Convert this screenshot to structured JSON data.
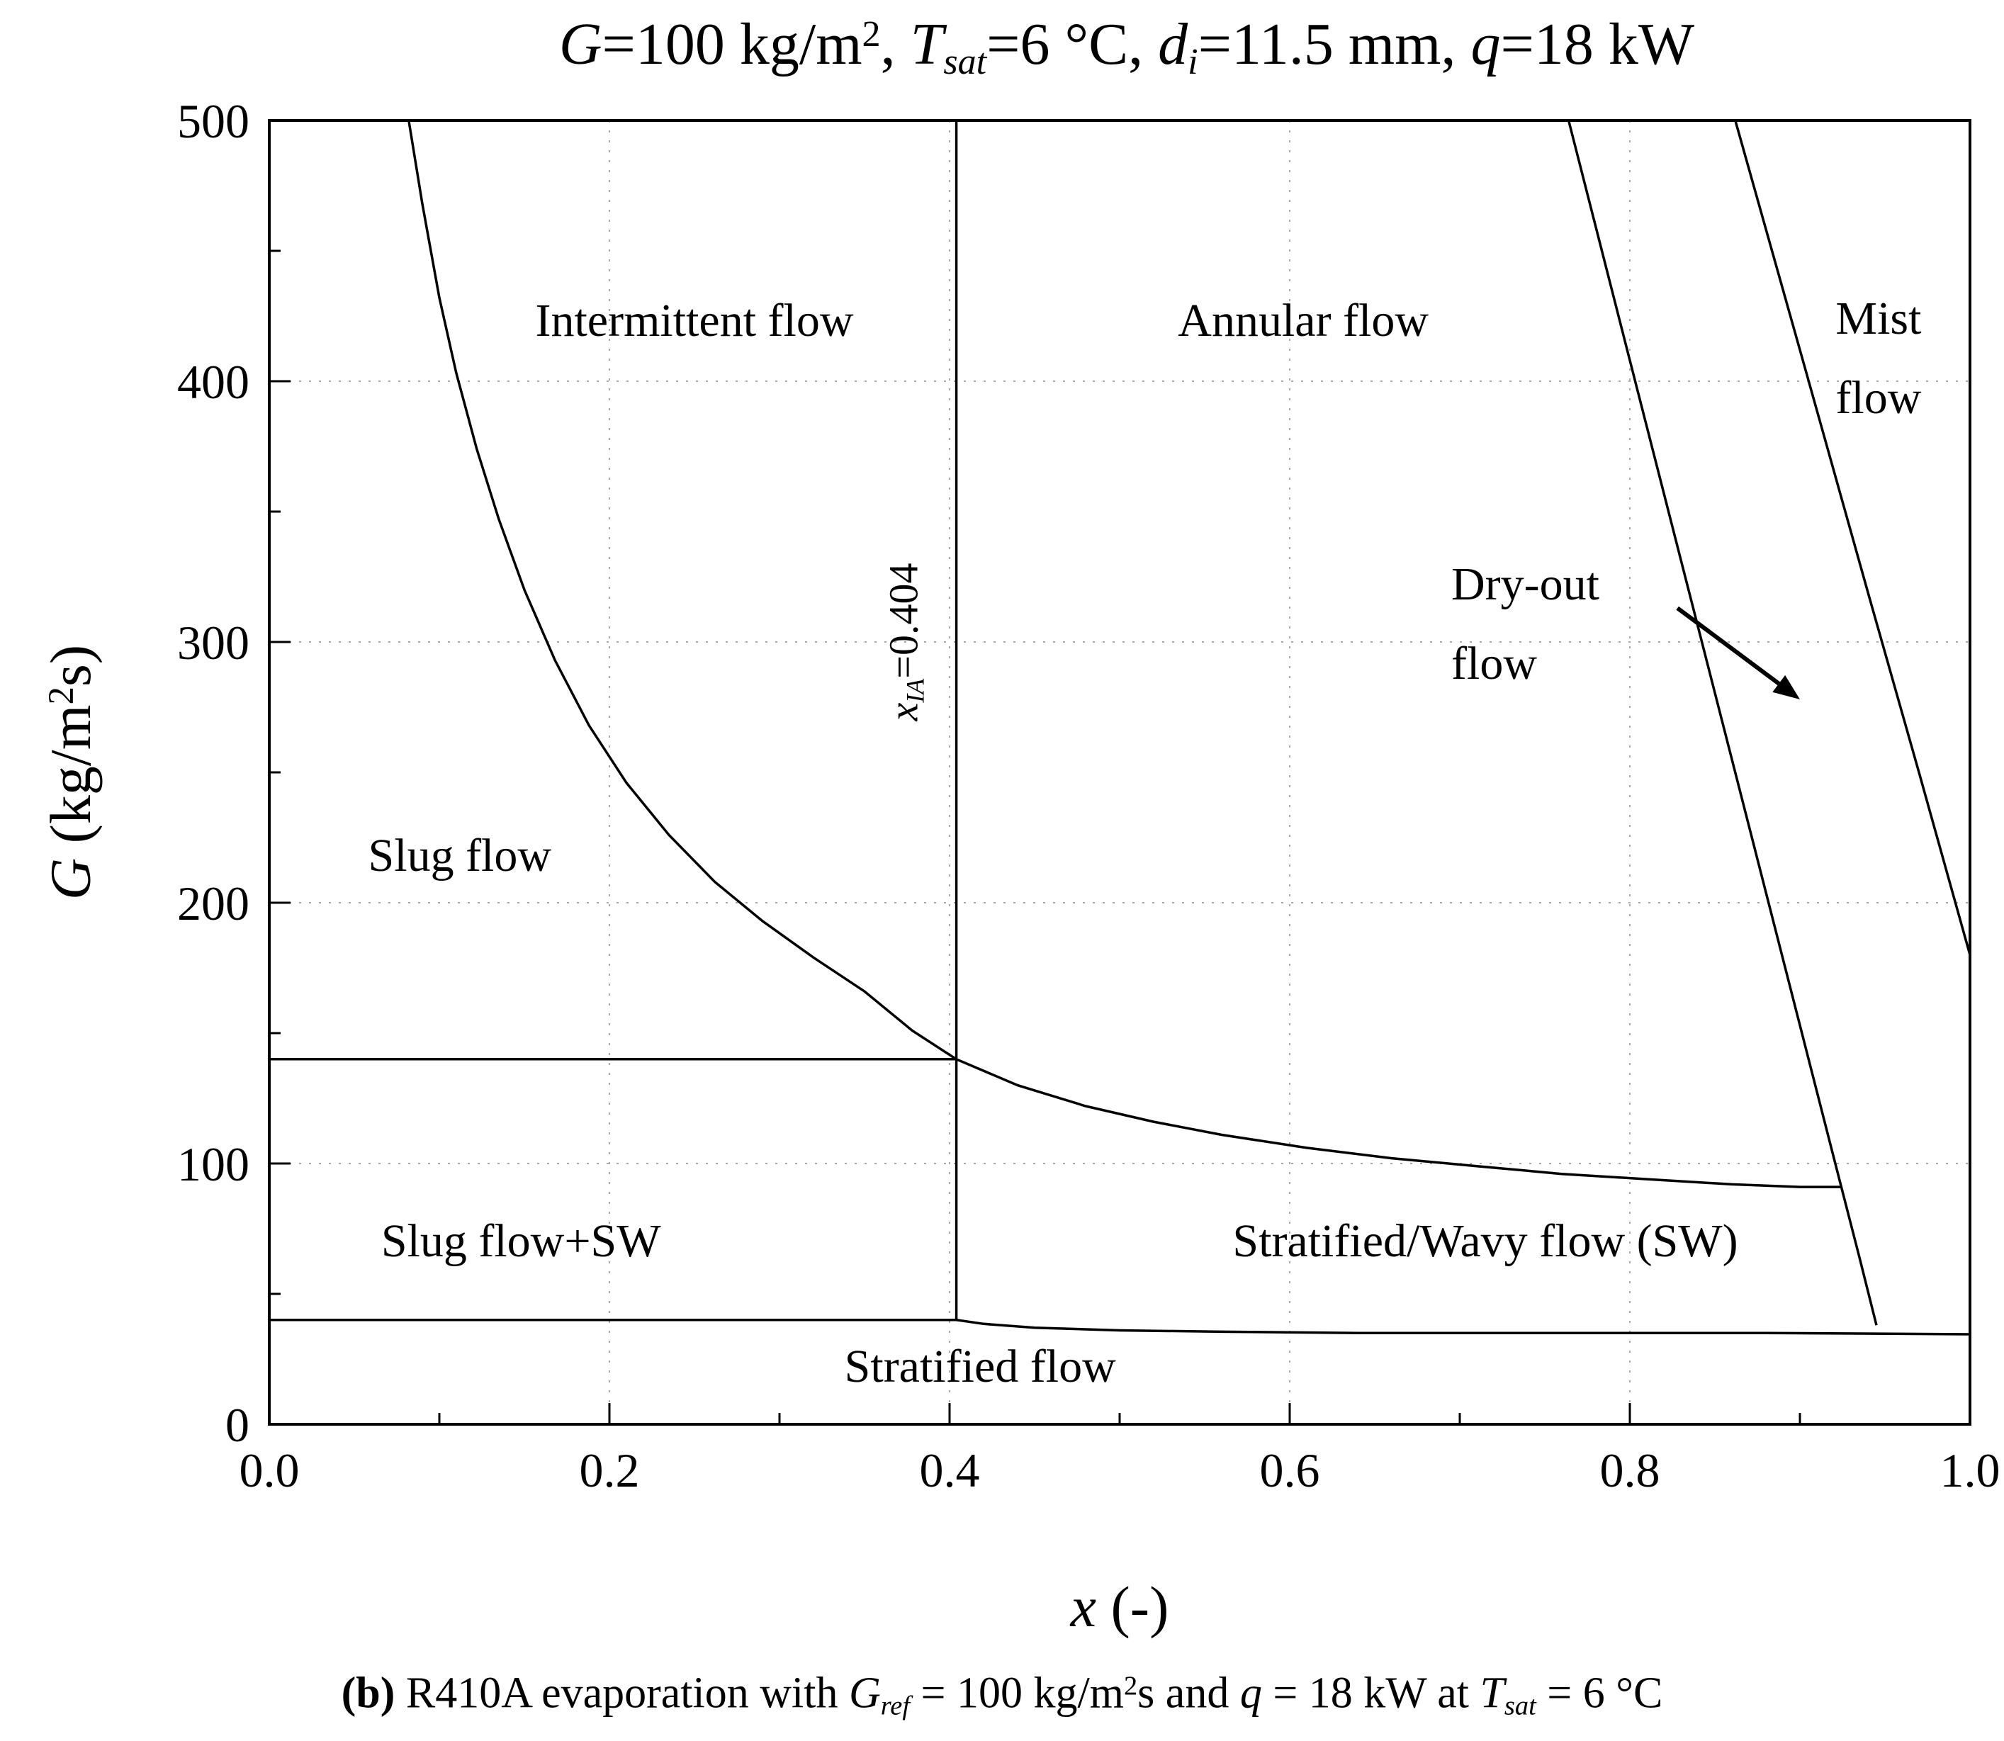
{
  "caption_segments": [
    {
      "t": "(b)",
      "b": true
    },
    {
      "t": " R410A evaporation with "
    },
    {
      "t": "G",
      "i": true
    },
    {
      "t": "ref",
      "i": true,
      "sub": true
    },
    {
      "t": " = 100 kg/m"
    },
    {
      "t": "2",
      "sup": true
    },
    {
      "t": "s and "
    },
    {
      "t": "q",
      "i": true
    },
    {
      "t": " = 18 kW at "
    },
    {
      "t": "T",
      "i": true
    },
    {
      "t": "sat",
      "i": true,
      "sub": true
    },
    {
      "t": " = 6 °C"
    }
  ],
  "chart_data": {
    "type": "line",
    "title_segments": [
      {
        "t": "G",
        "i": true
      },
      {
        "t": "=100 kg/m"
      },
      {
        "t": "2",
        "sup": true
      },
      {
        "t": ", "
      },
      {
        "t": "T",
        "i": true
      },
      {
        "t": "sat",
        "i": true,
        "sub": true
      },
      {
        "t": "=6 °C, "
      },
      {
        "t": "d",
        "i": true
      },
      {
        "t": "i",
        "i": true,
        "sub": true
      },
      {
        "t": "=11.5 mm, "
      },
      {
        "t": "q",
        "i": true
      },
      {
        "t": "=18 kW"
      }
    ],
    "xlabel_segments": [
      {
        "t": "x",
        "i": true
      },
      {
        "t": " (-)"
      }
    ],
    "ylabel_segments": [
      {
        "t": "G",
        "i": true
      },
      {
        "t": " (kg/m"
      },
      {
        "t": "2",
        "sup": true
      },
      {
        "t": "s)"
      }
    ],
    "xlim": [
      0,
      1
    ],
    "ylim": [
      0,
      500
    ],
    "xticks": [
      0,
      0.2,
      0.4,
      0.6,
      0.8,
      1.0
    ],
    "xtick_labels": [
      "0.0",
      "0.2",
      "0.4",
      "0.6",
      "0.8",
      "1.0"
    ],
    "x_minor_ticks": [
      0.1,
      0.3,
      0.5,
      0.7,
      0.9
    ],
    "yticks": [
      0,
      100,
      200,
      300,
      400,
      500
    ],
    "ytick_labels": [
      "0",
      "100",
      "200",
      "300",
      "400",
      "500"
    ],
    "y_minor_ticks": [
      50,
      150,
      250,
      350,
      450
    ],
    "grid": {
      "show": true,
      "style": "dotted",
      "at": "major-ticks"
    },
    "line_color": "#000000",
    "series": [
      {
        "name": "wavy-transition-boundary",
        "points": [
          [
            0.082,
            500
          ],
          [
            0.09,
            468
          ],
          [
            0.1,
            432
          ],
          [
            0.11,
            403
          ],
          [
            0.122,
            374
          ],
          [
            0.135,
            347
          ],
          [
            0.15,
            320
          ],
          [
            0.168,
            293
          ],
          [
            0.188,
            268
          ],
          [
            0.21,
            246
          ],
          [
            0.235,
            226
          ],
          [
            0.262,
            208
          ],
          [
            0.29,
            193
          ],
          [
            0.32,
            179
          ],
          [
            0.35,
            166
          ],
          [
            0.378,
            151
          ],
          [
            0.404,
            140
          ],
          [
            0.44,
            130
          ],
          [
            0.48,
            122
          ],
          [
            0.52,
            116
          ],
          [
            0.56,
            111
          ],
          [
            0.61,
            106
          ],
          [
            0.66,
            102
          ],
          [
            0.71,
            99
          ],
          [
            0.76,
            96
          ],
          [
            0.81,
            94
          ],
          [
            0.86,
            92
          ],
          [
            0.9,
            91
          ],
          [
            0.924,
            91
          ]
        ]
      },
      {
        "name": "slug-intermittent-boundary",
        "points": [
          [
            0,
            140
          ],
          [
            0.404,
            140
          ]
        ]
      },
      {
        "name": "xia-boundary-line",
        "points": [
          [
            0.404,
            40
          ],
          [
            0.404,
            500
          ]
        ]
      },
      {
        "name": "stratified-flow-boundary",
        "points": [
          [
            0,
            40
          ],
          [
            0.404,
            40
          ],
          [
            0.42,
            38.5
          ],
          [
            0.45,
            37
          ],
          [
            0.5,
            36
          ],
          [
            0.56,
            35.5
          ],
          [
            0.64,
            35
          ],
          [
            0.75,
            35
          ],
          [
            0.88,
            35
          ],
          [
            1.0,
            34.5
          ]
        ]
      },
      {
        "name": "dryout-boundary",
        "points": [
          [
            0.764,
            500
          ],
          [
            0.8,
            408
          ],
          [
            0.84,
            306
          ],
          [
            0.88,
            204
          ],
          [
            0.92,
            102
          ],
          [
            0.935,
            64
          ],
          [
            0.945,
            38
          ]
        ]
      },
      {
        "name": "mist-boundary",
        "points": [
          [
            0.862,
            500
          ],
          [
            0.9,
            412
          ],
          [
            0.94,
            319
          ],
          [
            0.97,
            250
          ],
          [
            1.0,
            180
          ]
        ]
      }
    ],
    "region_labels": [
      {
        "name": "intermittent-flow-label",
        "lines": [
          "Intermittent flow"
        ],
        "x": 0.25,
        "y": 423,
        "anchor": "middle"
      },
      {
        "name": "annular-flow-label",
        "lines": [
          "Annular flow"
        ],
        "x": 0.608,
        "y": 423,
        "anchor": "middle"
      },
      {
        "name": "mist-flow-label",
        "lines": [
          "Mist",
          "flow"
        ],
        "x": 0.921,
        "y": 424,
        "anchor": "start"
      },
      {
        "name": "dryout-flow-label",
        "lines": [
          "Dry-out",
          "flow"
        ],
        "x": 0.695,
        "y": 322,
        "anchor": "start"
      },
      {
        "name": "slug-flow-label",
        "lines": [
          "Slug flow"
        ],
        "x": 0.112,
        "y": 218,
        "anchor": "middle"
      },
      {
        "name": "slug-sw-flow-label",
        "lines": [
          "Slug flow+SW"
        ],
        "x": 0.148,
        "y": 70,
        "anchor": "middle"
      },
      {
        "name": "stratified-wavy-flow-label",
        "lines": [
          "Stratified/Wavy flow (SW)"
        ],
        "x": 0.715,
        "y": 70,
        "anchor": "middle"
      },
      {
        "name": "stratified-flow-label",
        "lines": [
          "Stratified flow"
        ],
        "x": 0.418,
        "y": 22,
        "anchor": "middle"
      }
    ],
    "xia_label": {
      "segments": [
        {
          "t": "x",
          "i": true
        },
        {
          "t": "IA",
          "i": true,
          "sub": true
        },
        {
          "t": "=0.404"
        }
      ],
      "x": 0.373,
      "y": 300,
      "rotation_deg": -90
    },
    "annotation_arrow": {
      "from": [
        0.828,
        313
      ],
      "to": [
        0.9,
        278
      ]
    }
  }
}
